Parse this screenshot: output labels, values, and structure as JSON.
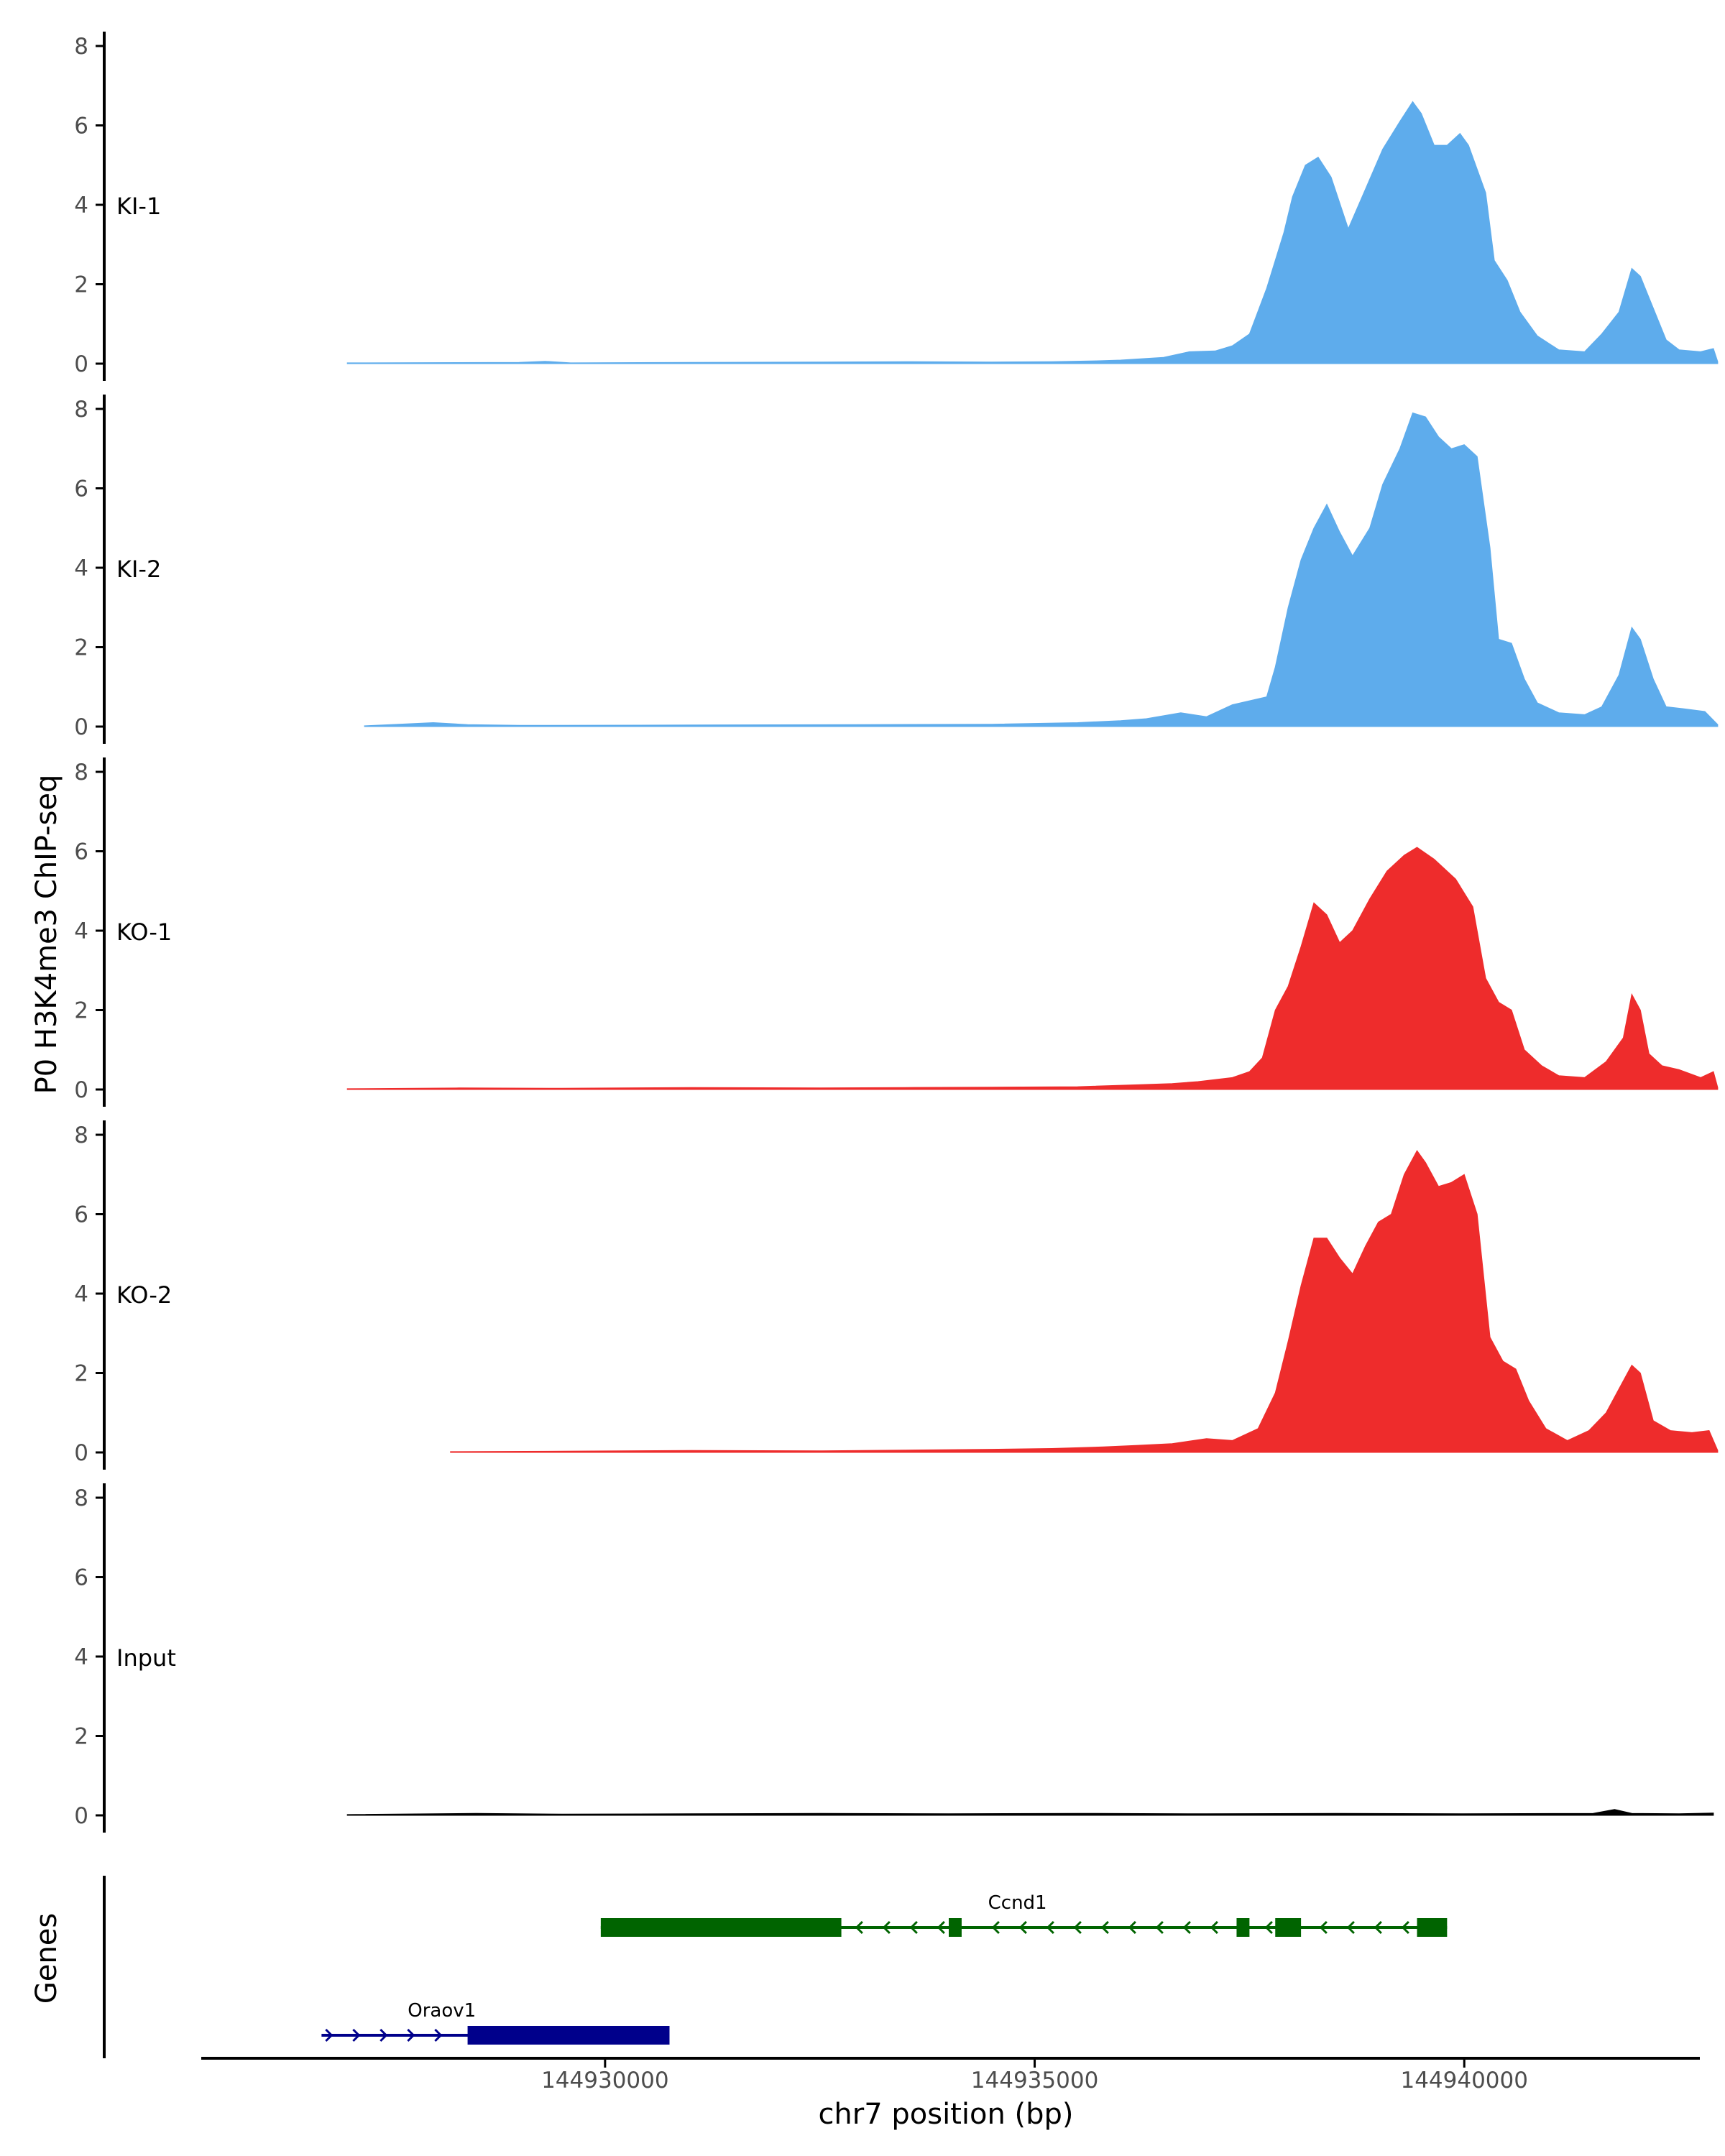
{
  "chart_data": {
    "type": "area",
    "y_axis_title": "P0 H3K4me3 ChIP-seq",
    "x_axis_title": "chr7 position (bp)",
    "genes_label": "Genes",
    "x_range": [
      144925300,
      144942700
    ],
    "x_ticks": [
      {
        "value": 144930000,
        "label": "144930000"
      },
      {
        "value": 144935000,
        "label": "144935000"
      },
      {
        "value": 144940000,
        "label": "144940000"
      }
    ],
    "y_range": [
      0,
      8.3
    ],
    "y_ticks": [
      {
        "value": 0,
        "label": "0"
      },
      {
        "value": 2,
        "label": "2"
      },
      {
        "value": 4,
        "label": "4"
      },
      {
        "value": 6,
        "label": "6"
      },
      {
        "value": 8,
        "label": "8"
      }
    ],
    "colors": {
      "KI": "#5eacec",
      "KO": "#ee2c2c",
      "Input": "#000000",
      "Ccnd1": "#006400",
      "Oraov1": "#00008b"
    },
    "tracks": [
      {
        "name": "KI-1",
        "color": "#5eacec",
        "points": [
          [
            144927000,
            0.02
          ],
          [
            144929000,
            0.03
          ],
          [
            144929300,
            0.06
          ],
          [
            144929600,
            0.02
          ],
          [
            144931000,
            0.03
          ],
          [
            144932500,
            0.04
          ],
          [
            144933500,
            0.05
          ],
          [
            144934500,
            0.04
          ],
          [
            144935200,
            0.05
          ],
          [
            144935700,
            0.07
          ],
          [
            144936000,
            0.09
          ],
          [
            144936500,
            0.16
          ],
          [
            144936800,
            0.3
          ],
          [
            144937100,
            0.32
          ],
          [
            144937300,
            0.45
          ],
          [
            144937500,
            0.75
          ],
          [
            144937700,
            1.9
          ],
          [
            144937900,
            3.3
          ],
          [
            144938000,
            4.2
          ],
          [
            144938150,
            5.0
          ],
          [
            144938300,
            5.2
          ],
          [
            144938450,
            4.7
          ],
          [
            144938650,
            3.4
          ],
          [
            144938850,
            4.4
          ],
          [
            144939050,
            5.4
          ],
          [
            144939250,
            6.1
          ],
          [
            144939400,
            6.6
          ],
          [
            144939500,
            6.3
          ],
          [
            144939650,
            5.5
          ],
          [
            144939800,
            5.5
          ],
          [
            144939950,
            5.8
          ],
          [
            144940050,
            5.5
          ],
          [
            144940250,
            4.3
          ],
          [
            144940350,
            2.6
          ],
          [
            144940500,
            2.1
          ],
          [
            144940650,
            1.3
          ],
          [
            144940850,
            0.7
          ],
          [
            144941100,
            0.35
          ],
          [
            144941400,
            0.3
          ],
          [
            144941600,
            0.75
          ],
          [
            144941800,
            1.3
          ],
          [
            144941950,
            2.4
          ],
          [
            144942050,
            2.2
          ],
          [
            144942200,
            1.4
          ],
          [
            144942350,
            0.6
          ],
          [
            144942500,
            0.35
          ],
          [
            144942750,
            0.3
          ],
          [
            144942900,
            0.38
          ],
          [
            144942950,
            0.05
          ]
        ]
      },
      {
        "name": "KI-2",
        "color": "#5eacec",
        "points": [
          [
            144927200,
            0.02
          ],
          [
            144927600,
            0.06
          ],
          [
            144928000,
            0.1
          ],
          [
            144928400,
            0.05
          ],
          [
            144929000,
            0.03
          ],
          [
            144931000,
            0.04
          ],
          [
            144933000,
            0.05
          ],
          [
            144934500,
            0.06
          ],
          [
            144935500,
            0.1
          ],
          [
            144936000,
            0.15
          ],
          [
            144936300,
            0.2
          ],
          [
            144936700,
            0.35
          ],
          [
            144937000,
            0.25
          ],
          [
            144937300,
            0.55
          ],
          [
            144937700,
            0.75
          ],
          [
            144937800,
            1.5
          ],
          [
            144937950,
            3.0
          ],
          [
            144938100,
            4.2
          ],
          [
            144938250,
            5.0
          ],
          [
            144938400,
            5.6
          ],
          [
            144938550,
            4.9
          ],
          [
            144938700,
            4.3
          ],
          [
            144938900,
            5.0
          ],
          [
            144939050,
            6.1
          ],
          [
            144939250,
            7.0
          ],
          [
            144939400,
            7.9
          ],
          [
            144939550,
            7.8
          ],
          [
            144939700,
            7.3
          ],
          [
            144939850,
            7.0
          ],
          [
            144940000,
            7.1
          ],
          [
            144940150,
            6.8
          ],
          [
            144940300,
            4.5
          ],
          [
            144940400,
            2.2
          ],
          [
            144940550,
            2.1
          ],
          [
            144940700,
            1.2
          ],
          [
            144940850,
            0.6
          ],
          [
            144941100,
            0.35
          ],
          [
            144941400,
            0.3
          ],
          [
            144941600,
            0.5
          ],
          [
            144941800,
            1.3
          ],
          [
            144941950,
            2.5
          ],
          [
            144942050,
            2.2
          ],
          [
            144942200,
            1.2
          ],
          [
            144942350,
            0.5
          ],
          [
            144942550,
            0.45
          ],
          [
            144942800,
            0.38
          ],
          [
            144942950,
            0.05
          ]
        ]
      },
      {
        "name": "KO-1",
        "color": "#ee2c2c",
        "points": [
          [
            144927000,
            0.02
          ],
          [
            144928300,
            0.04
          ],
          [
            144929500,
            0.03
          ],
          [
            144931000,
            0.05
          ],
          [
            144932500,
            0.04
          ],
          [
            144933500,
            0.05
          ],
          [
            144934500,
            0.06
          ],
          [
            144935500,
            0.07
          ],
          [
            144936200,
            0.12
          ],
          [
            144936600,
            0.15
          ],
          [
            144936900,
            0.2
          ],
          [
            144937300,
            0.3
          ],
          [
            144937500,
            0.45
          ],
          [
            144937650,
            0.8
          ],
          [
            144937800,
            2.0
          ],
          [
            144937950,
            2.6
          ],
          [
            144938100,
            3.6
          ],
          [
            144938250,
            4.7
          ],
          [
            144938400,
            4.4
          ],
          [
            144938550,
            3.7
          ],
          [
            144938700,
            4.0
          ],
          [
            144938900,
            4.8
          ],
          [
            144939100,
            5.5
          ],
          [
            144939300,
            5.9
          ],
          [
            144939450,
            6.1
          ],
          [
            144939650,
            5.8
          ],
          [
            144939900,
            5.3
          ],
          [
            144940100,
            4.6
          ],
          [
            144940250,
            2.8
          ],
          [
            144940400,
            2.2
          ],
          [
            144940550,
            2.0
          ],
          [
            144940700,
            1.0
          ],
          [
            144940900,
            0.6
          ],
          [
            144941100,
            0.35
          ],
          [
            144941400,
            0.3
          ],
          [
            144941650,
            0.7
          ],
          [
            144941850,
            1.3
          ],
          [
            144941950,
            2.4
          ],
          [
            144942050,
            2.0
          ],
          [
            144942150,
            0.9
          ],
          [
            144942300,
            0.6
          ],
          [
            144942500,
            0.5
          ],
          [
            144942750,
            0.3
          ],
          [
            144942900,
            0.45
          ],
          [
            144942950,
            0.05
          ]
        ]
      },
      {
        "name": "KO-2",
        "color": "#ee2c2c",
        "points": [
          [
            144928200,
            0.02
          ],
          [
            144929500,
            0.03
          ],
          [
            144931000,
            0.05
          ],
          [
            144932500,
            0.04
          ],
          [
            144933500,
            0.06
          ],
          [
            144934500,
            0.08
          ],
          [
            144935200,
            0.1
          ],
          [
            144935800,
            0.14
          ],
          [
            144936200,
            0.18
          ],
          [
            144936600,
            0.22
          ],
          [
            144937000,
            0.35
          ],
          [
            144937300,
            0.3
          ],
          [
            144937600,
            0.6
          ],
          [
            144937800,
            1.5
          ],
          [
            144937950,
            2.8
          ],
          [
            144938100,
            4.2
          ],
          [
            144938250,
            5.4
          ],
          [
            144938400,
            5.4
          ],
          [
            144938550,
            4.9
          ],
          [
            144938700,
            4.5
          ],
          [
            144938850,
            5.2
          ],
          [
            144939000,
            5.8
          ],
          [
            144939150,
            6.0
          ],
          [
            144939300,
            7.0
          ],
          [
            144939450,
            7.6
          ],
          [
            144939550,
            7.3
          ],
          [
            144939700,
            6.7
          ],
          [
            144939850,
            6.8
          ],
          [
            144940000,
            7.0
          ],
          [
            144940150,
            6.0
          ],
          [
            144940300,
            2.9
          ],
          [
            144940450,
            2.3
          ],
          [
            144940600,
            2.1
          ],
          [
            144940750,
            1.3
          ],
          [
            144940950,
            0.6
          ],
          [
            144941200,
            0.3
          ],
          [
            144941450,
            0.55
          ],
          [
            144941650,
            1.0
          ],
          [
            144941850,
            1.8
          ],
          [
            144941950,
            2.2
          ],
          [
            144942050,
            2.0
          ],
          [
            144942200,
            0.8
          ],
          [
            144942400,
            0.55
          ],
          [
            144942650,
            0.5
          ],
          [
            144942850,
            0.55
          ],
          [
            144942950,
            0.05
          ]
        ]
      },
      {
        "name": "Input",
        "color": "#000000",
        "points": [
          [
            144927000,
            0.02
          ],
          [
            144928500,
            0.05
          ],
          [
            144929500,
            0.03
          ],
          [
            144931000,
            0.04
          ],
          [
            144932500,
            0.05
          ],
          [
            144934000,
            0.04
          ],
          [
            144935500,
            0.05
          ],
          [
            144937000,
            0.04
          ],
          [
            144938500,
            0.05
          ],
          [
            144940000,
            0.04
          ],
          [
            144941500,
            0.05
          ],
          [
            144941750,
            0.15
          ],
          [
            144941950,
            0.05
          ],
          [
            144942500,
            0.04
          ],
          [
            144942900,
            0.06
          ]
        ]
      }
    ],
    "genes": [
      {
        "name": "Ccnd1",
        "strand": "-",
        "color": "#006400",
        "start": 144929950,
        "end": 144939800,
        "label_x": 144934800,
        "row": 1,
        "exons": [
          [
            144929950,
            144932750
          ],
          [
            144934000,
            144934150
          ],
          [
            144937350,
            144937500
          ],
          [
            144937800,
            144938100
          ],
          [
            144939450,
            144939800
          ]
        ]
      },
      {
        "name": "Oraov1",
        "strand": "+",
        "color": "#00008b",
        "start": 144926700,
        "end": 144930750,
        "label_x": 144928100,
        "row": 2,
        "exons": [
          [
            144928400,
            144930750
          ]
        ]
      }
    ]
  }
}
